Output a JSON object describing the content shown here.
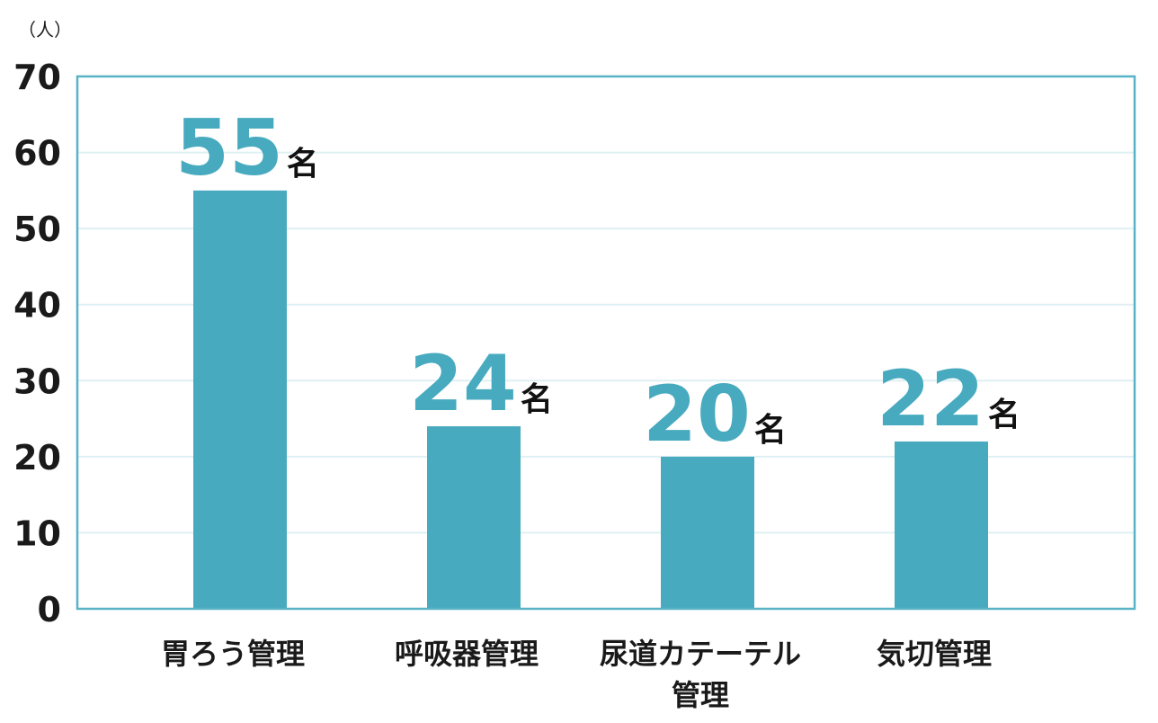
{
  "chart_data": {
    "type": "bar",
    "unit_label": "（人）",
    "categories": [
      "胃ろう管理",
      "呼吸器管理",
      "尿道カテーテル管理",
      "気切管理"
    ],
    "category_lines": [
      [
        "胃ろう管理"
      ],
      [
        "呼吸器管理"
      ],
      [
        "尿道カテーテル",
        "管理"
      ],
      [
        "気切管理"
      ]
    ],
    "values": [
      55,
      24,
      20,
      22
    ],
    "value_labels": [
      "55",
      "24",
      "20",
      "22"
    ],
    "value_suffix": "名",
    "ylim": [
      0,
      70
    ],
    "yticks": [
      "0",
      "10",
      "20",
      "30",
      "40",
      "50",
      "60",
      "70"
    ],
    "grid": true,
    "colors": {
      "bar": "#48aabf",
      "value_label": "#48aabf",
      "frame": "#58b3c7",
      "grid": "#dff0f4"
    }
  }
}
